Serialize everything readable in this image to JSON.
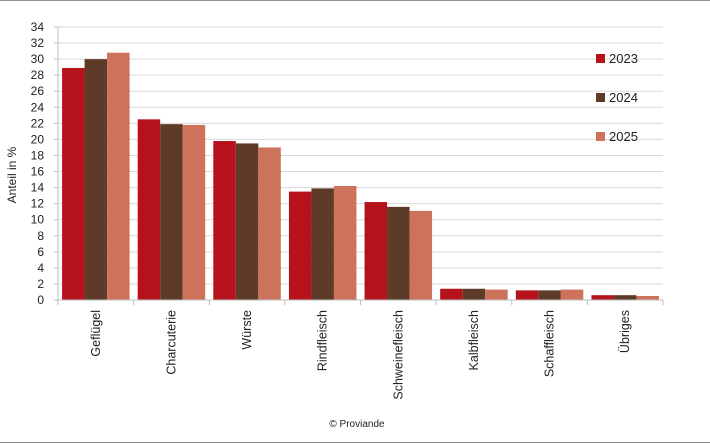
{
  "chart_data": {
    "type": "bar",
    "ylabel": "Anteil in %",
    "ylim": [
      0,
      34
    ],
    "yticks": [
      0,
      2,
      4,
      6,
      8,
      10,
      12,
      14,
      16,
      18,
      20,
      22,
      24,
      26,
      28,
      30,
      32,
      34
    ],
    "grid": true,
    "legend_position": "right",
    "categories": [
      "Geflügel",
      "Charcuterie",
      "Würste",
      "Rindfleisch",
      "Schweinefleisch",
      "Kalbfleisch",
      "Schaffleisch",
      "Übriges"
    ],
    "series": [
      {
        "name": "2023",
        "color": "#b5121b",
        "values": [
          28.9,
          22.5,
          19.8,
          13.5,
          12.2,
          1.4,
          1.2,
          0.6
        ]
      },
      {
        "name": "2024",
        "color": "#5e3a28",
        "values": [
          30.0,
          21.9,
          19.5,
          13.9,
          11.6,
          1.4,
          1.2,
          0.6
        ]
      },
      {
        "name": "2025",
        "color": "#cd735c",
        "values": [
          30.8,
          21.8,
          19.0,
          14.2,
          11.1,
          1.3,
          1.3,
          0.5
        ]
      }
    ]
  },
  "credit": "© Proviande"
}
